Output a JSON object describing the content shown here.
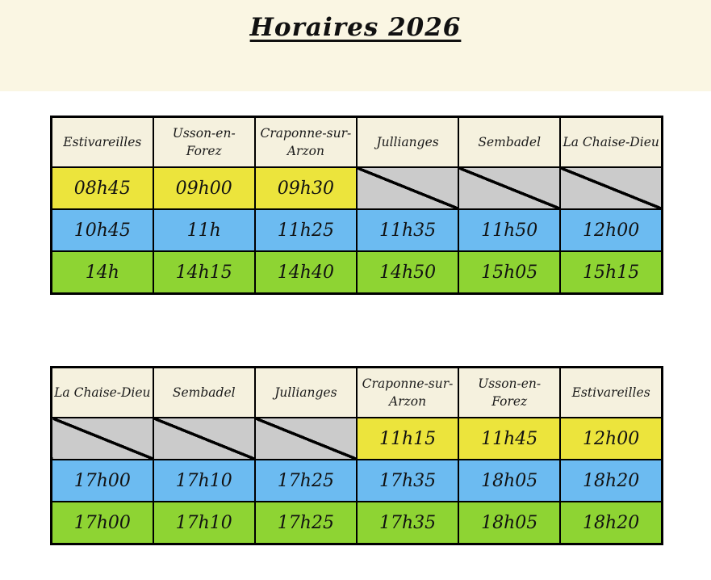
{
  "page": {
    "title": "Horaires 2026"
  },
  "colors": {
    "banner": "#faf6e3",
    "header_cell": "#f5f1de",
    "yellow": "#ece43c",
    "blue": "#6cbbf1",
    "green": "#8ed433",
    "gray_empty": "#cbcbcb",
    "border": "#000000"
  },
  "tables": [
    {
      "name": "outbound-schedule",
      "headers": [
        "Estivareilles",
        "Usson-en-Forez",
        "Craponne-sur-Arzon",
        "Jullianges",
        "Sembadel",
        "La Chaise-Dieu"
      ],
      "rows": [
        {
          "color": "yellow",
          "cells": [
            "08h45",
            "09h00",
            "09h30",
            null,
            null,
            null
          ]
        },
        {
          "color": "blue",
          "cells": [
            "10h45",
            "11h",
            "11h25",
            "11h35",
            "11h50",
            "12h00"
          ]
        },
        {
          "color": "green",
          "cells": [
            "14h",
            "14h15",
            "14h40",
            "14h50",
            "15h05",
            "15h15"
          ]
        }
      ]
    },
    {
      "name": "return-schedule",
      "headers": [
        "La Chaise-Dieu",
        "Sembadel",
        "Jullianges",
        "Craponne-sur-Arzon",
        "Usson-en-Forez",
        "Estivareilles"
      ],
      "rows": [
        {
          "color": "yellow",
          "cells": [
            null,
            null,
            null,
            "11h15",
            "11h45",
            "12h00"
          ]
        },
        {
          "color": "blue",
          "cells": [
            "17h00",
            "17h10",
            "17h25",
            "17h35",
            "18h05",
            "18h20"
          ]
        },
        {
          "color": "green",
          "cells": [
            "17h00",
            "17h10",
            "17h25",
            "17h35",
            "18h05",
            "18h20"
          ]
        }
      ]
    }
  ]
}
